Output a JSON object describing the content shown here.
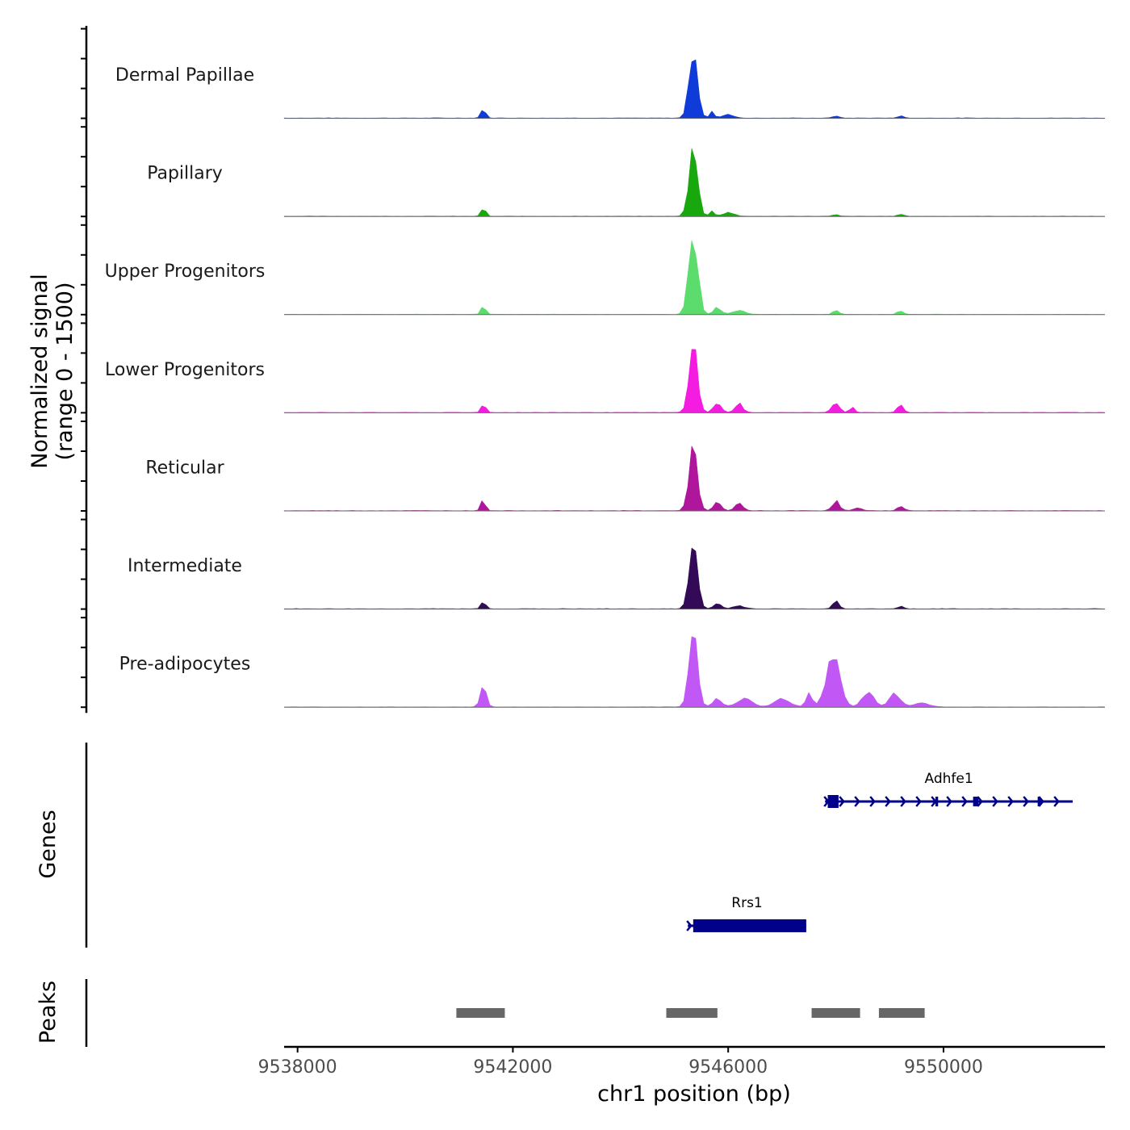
{
  "chart_data": {
    "type": "area",
    "chromosome": "chr1",
    "xlim": [
      9537750,
      9553000
    ],
    "y_axis_title_line1": "Normalized signal",
    "y_axis_title_line2": "(range 0 - 1500)",
    "ylim": [
      0,
      1500
    ],
    "xlabel": "chr1 position (bp)",
    "x_ticks": [
      9538000,
      9542000,
      9546000,
      9550000
    ],
    "x_tick_labels": [
      "9538000",
      "9542000",
      "9546000",
      "9550000"
    ],
    "peak_centers": [
      9541450,
      9545350,
      9547950,
      9549150
    ],
    "tracks": [
      {
        "name": "Dermal Papillae",
        "color": "#0f3bd9",
        "peaks": [
          [
            9541450,
            180,
            60
          ],
          [
            9545350,
            1350,
            110
          ],
          [
            9545700,
            120,
            60
          ],
          [
            9546000,
            70,
            150
          ],
          [
            9548000,
            40,
            80
          ],
          [
            9549200,
            40,
            80
          ]
        ]
      },
      {
        "name": "Papillary",
        "color": "#18a80e",
        "peaks": [
          [
            9541450,
            160,
            60
          ],
          [
            9545350,
            1350,
            110
          ],
          [
            9545700,
            120,
            60
          ],
          [
            9546000,
            70,
            150
          ],
          [
            9548000,
            30,
            80
          ],
          [
            9549200,
            40,
            80
          ]
        ]
      },
      {
        "name": "Upper Progenitors",
        "color": "#5bdc6c",
        "peaks": [
          [
            9541450,
            160,
            60
          ],
          [
            9545350,
            1500,
            120
          ],
          [
            9545800,
            130,
            100
          ],
          [
            9546200,
            80,
            150
          ],
          [
            9548000,
            80,
            80
          ],
          [
            9549200,
            70,
            80
          ]
        ]
      },
      {
        "name": "Lower Progenitors",
        "color": "#f41ce0",
        "peaks": [
          [
            9541450,
            170,
            60
          ],
          [
            9545350,
            1350,
            110
          ],
          [
            9545800,
            190,
            100
          ],
          [
            9546200,
            170,
            100
          ],
          [
            9548000,
            190,
            100
          ],
          [
            9548300,
            120,
            60
          ],
          [
            9549200,
            140,
            80
          ]
        ]
      },
      {
        "name": "Reticular",
        "color": "#b0169c",
        "peaks": [
          [
            9541450,
            220,
            60
          ],
          [
            9545350,
            1200,
            110
          ],
          [
            9545800,
            150,
            100
          ],
          [
            9546200,
            150,
            100
          ],
          [
            9548000,
            180,
            100
          ],
          [
            9548400,
            60,
            100
          ],
          [
            9549200,
            90,
            80
          ]
        ]
      },
      {
        "name": "Intermediate",
        "color": "#330a58",
        "peaks": [
          [
            9541450,
            140,
            60
          ],
          [
            9545350,
            1200,
            110
          ],
          [
            9545800,
            100,
            100
          ],
          [
            9546200,
            60,
            150
          ],
          [
            9548000,
            150,
            80
          ],
          [
            9549200,
            50,
            80
          ]
        ]
      },
      {
        "name": "Pre-adipocytes",
        "color": "#c157f5",
        "peaks": [
          [
            9541450,
            400,
            80
          ],
          [
            9545350,
            1500,
            110
          ],
          [
            9545800,
            160,
            120
          ],
          [
            9546300,
            160,
            200
          ],
          [
            9547000,
            160,
            200
          ],
          [
            9547500,
            250,
            80
          ],
          [
            9547950,
            1000,
            180
          ],
          [
            9548600,
            300,
            150
          ],
          [
            9549100,
            250,
            150
          ],
          [
            9549600,
            80,
            200
          ]
        ]
      }
    ],
    "genes_title": "Genes",
    "genes": [
      {
        "name": "Adhfe1",
        "strand": "+",
        "start": 9547800,
        "end": 9552400,
        "exons": [
          [
            9547850,
            9548050
          ],
          [
            9549850,
            9549900
          ],
          [
            9550550,
            9550650
          ],
          [
            9551750,
            9551800
          ]
        ]
      },
      {
        "name": "Rrs1",
        "strand": "+",
        "start": 9545250,
        "end": 9547450,
        "exons": [
          [
            9545350,
            9547450
          ]
        ]
      }
    ],
    "peaks_title": "Peaks",
    "peaks": [
      [
        9540950,
        9541850
      ],
      [
        9544850,
        9545800
      ],
      [
        9547550,
        9548450
      ],
      [
        9548800,
        9549650
      ]
    ]
  },
  "colors": {
    "gene": "#00008b",
    "peak": "#666666",
    "axis": "#000000",
    "tick_label": "#4d4d4d"
  }
}
